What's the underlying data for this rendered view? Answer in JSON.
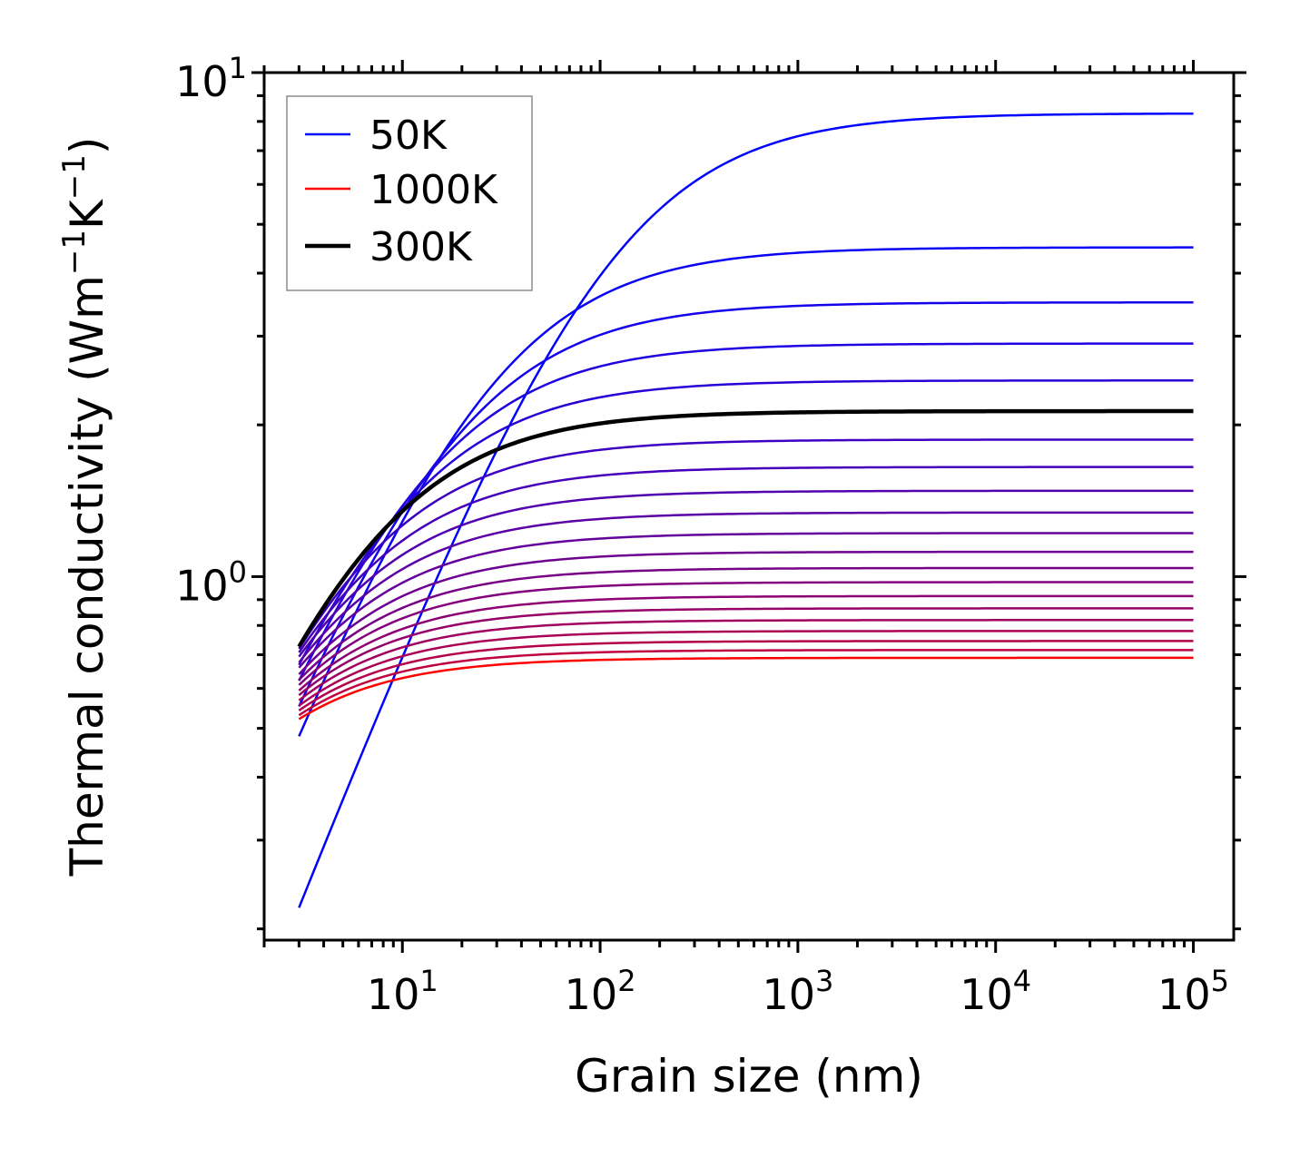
{
  "chart_data": {
    "type": "line",
    "xscale": "log",
    "yscale": "log",
    "xlabel": "Grain size (nm)",
    "ylabel": {
      "prefix": "Thermal conductivity (Wm",
      "sup1": "−1",
      "mid": "K",
      "sup2": "−1",
      "suffix": ")"
    },
    "xlim": [
      2,
      160000
    ],
    "ylim": [
      0.19,
      10
    ],
    "x_range": [
      3,
      100000
    ],
    "xticks": [
      {
        "value": 10,
        "base": "10",
        "exp": "1"
      },
      {
        "value": 100,
        "base": "10",
        "exp": "2"
      },
      {
        "value": 1000,
        "base": "10",
        "exp": "3"
      },
      {
        "value": 10000,
        "base": "10",
        "exp": "4"
      },
      {
        "value": 100000,
        "base": "10",
        "exp": "5"
      }
    ],
    "yticks": [
      {
        "value": 1,
        "base": "10",
        "exp": "0"
      },
      {
        "value": 10,
        "base": "10",
        "exp": "1"
      }
    ],
    "legend": {
      "position": "upper-left",
      "entries": [
        {
          "label": "50K",
          "color": "#0000ff"
        },
        {
          "label": "1000K",
          "color": "#ff0000"
        },
        {
          "label": "300K",
          "color": "#000000"
        }
      ]
    },
    "model": "k(d) = k_bulk * (d/L)/(1 + d/L)",
    "series": [
      {
        "name": "50K",
        "color": "#0000ff",
        "k_bulk": 8.3,
        "L_nm": 110,
        "width": 2.5
      },
      {
        "name": "",
        "color": "#0a00f5",
        "k_bulk": 4.5,
        "L_nm": 25,
        "width": 2.5
      },
      {
        "name": "",
        "color": "#1400eb",
        "k_bulk": 3.5,
        "L_nm": 16,
        "width": 2.5
      },
      {
        "name": "",
        "color": "#1e00e1",
        "k_bulk": 2.9,
        "L_nm": 11,
        "width": 2.5
      },
      {
        "name": "",
        "color": "#2800d7",
        "k_bulk": 2.45,
        "L_nm": 8,
        "width": 2.5
      },
      {
        "name": "300K",
        "color": "#000000",
        "k_bulk": 2.13,
        "L_nm": 5.8,
        "width": 4.5
      },
      {
        "name": "",
        "color": "#3c00c3",
        "k_bulk": 1.87,
        "L_nm": 4.8,
        "width": 2.5
      },
      {
        "name": "",
        "color": "#4600b9",
        "k_bulk": 1.65,
        "L_nm": 4.0,
        "width": 2.5
      },
      {
        "name": "",
        "color": "#5000af",
        "k_bulk": 1.48,
        "L_nm": 3.4,
        "width": 2.5
      },
      {
        "name": "",
        "color": "#5a00a5",
        "k_bulk": 1.34,
        "L_nm": 2.95,
        "width": 2.5
      },
      {
        "name": "",
        "color": "#64009b",
        "k_bulk": 1.22,
        "L_nm": 2.55,
        "width": 2.5
      },
      {
        "name": "",
        "color": "#6e0091",
        "k_bulk": 1.12,
        "L_nm": 2.25,
        "width": 2.5
      },
      {
        "name": "",
        "color": "#780087",
        "k_bulk": 1.04,
        "L_nm": 2.0,
        "width": 2.5
      },
      {
        "name": "",
        "color": "#82007d",
        "k_bulk": 0.975,
        "L_nm": 1.8,
        "width": 2.5
      },
      {
        "name": "",
        "color": "#8c0073",
        "k_bulk": 0.915,
        "L_nm": 1.62,
        "width": 2.5
      },
      {
        "name": "",
        "color": "#960069",
        "k_bulk": 0.865,
        "L_nm": 1.46,
        "width": 2.5
      },
      {
        "name": "",
        "color": "#a0005f",
        "k_bulk": 0.82,
        "L_nm": 1.33,
        "width": 2.5
      },
      {
        "name": "",
        "color": "#aa0055",
        "k_bulk": 0.78,
        "L_nm": 1.22,
        "width": 2.5
      },
      {
        "name": "",
        "color": "#b4004b",
        "k_bulk": 0.745,
        "L_nm": 1.12,
        "width": 2.5
      },
      {
        "name": "",
        "color": "#be0041",
        "k_bulk": 0.715,
        "L_nm": 1.04,
        "width": 2.5
      },
      {
        "name": "1000K",
        "color": "#ff0000",
        "k_bulk": 0.69,
        "L_nm": 0.97,
        "width": 2.5
      }
    ]
  }
}
